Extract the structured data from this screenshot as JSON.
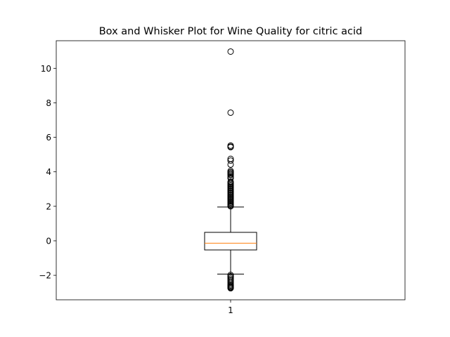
{
  "chart_data": {
    "type": "box",
    "title": "Box and Whisker Plot for Wine Quality for citric acid",
    "xlabel": "",
    "ylabel": "",
    "categories": [
      "1"
    ],
    "ylim": [
      -3.42,
      11.6
    ],
    "yticks": [
      -2,
      0,
      2,
      4,
      6,
      8,
      10
    ],
    "ytick_labels": [
      "−2",
      "0",
      "2",
      "4",
      "6",
      "8",
      "10"
    ],
    "grid": false,
    "boxes": [
      {
        "category": "1",
        "q1": -0.53,
        "median": -0.14,
        "q3": 0.49,
        "whisker_low": -1.93,
        "whisker_high": 1.96,
        "outliers": [
          10.97,
          7.43,
          5.52,
          5.46,
          5.43,
          4.75,
          4.65,
          4.42,
          4.05,
          3.98,
          3.92,
          3.86,
          3.8,
          3.7,
          3.62,
          3.42,
          3.36,
          3.3,
          3.24,
          3.18,
          3.12,
          3.06,
          3.0,
          2.94,
          2.88,
          2.82,
          2.76,
          2.7,
          2.64,
          2.58,
          2.52,
          2.46,
          2.4,
          2.34,
          2.28,
          2.22,
          2.16,
          2.1,
          2.05,
          2.0,
          -1.98,
          -2.05,
          -2.12,
          -2.2,
          -2.28,
          -2.36,
          -2.44,
          -2.52,
          -2.58,
          -2.63,
          -2.68,
          -2.72,
          -2.75
        ]
      }
    ],
    "colors": {
      "box": "#000000",
      "median": "#ff7f0e",
      "whisker": "#000000",
      "flier_edge": "#000000"
    }
  }
}
